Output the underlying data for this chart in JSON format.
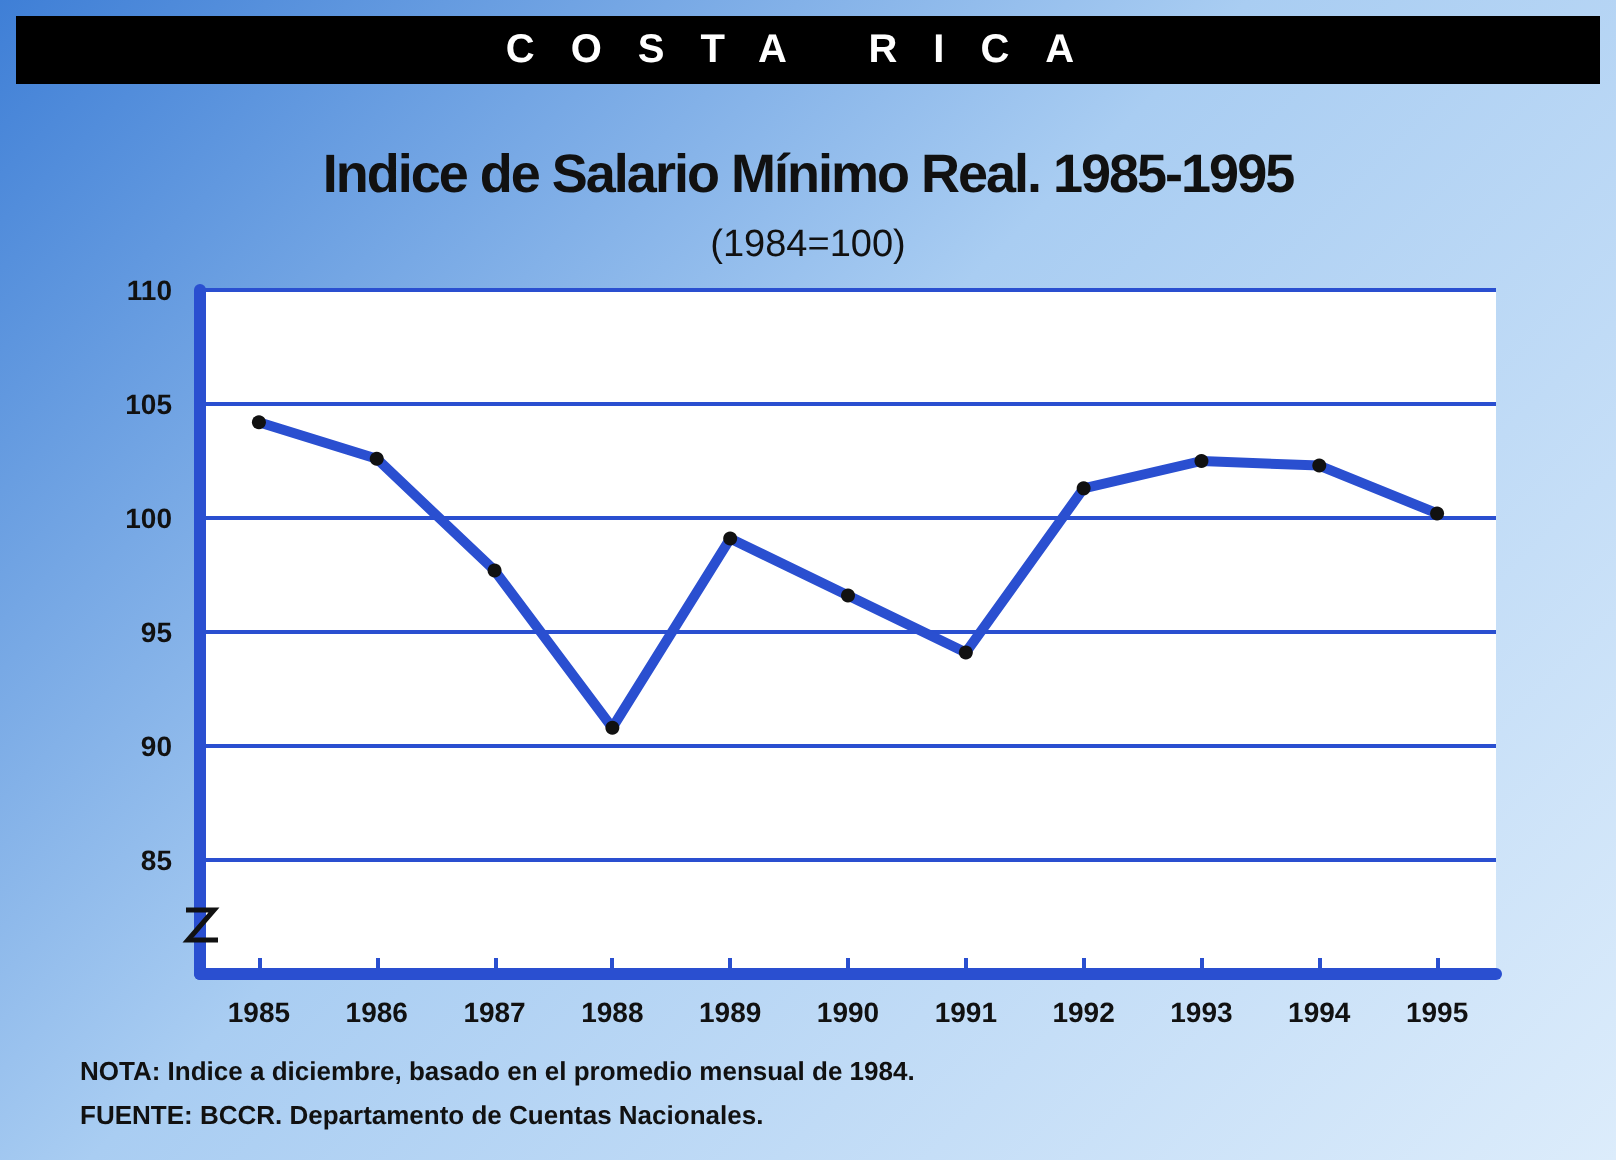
{
  "chart_data": {
    "type": "line",
    "title": "Indice de Salario Mínimo Real. 1985-1995",
    "subtitle": "(1984=100)",
    "annotations": [
      "COSTA RICA",
      "NOTA: Indice a diciembre, basado en el promedio mensual de 1984.",
      "FUENTE: BCCR. Departamento  de Cuentas Nacionales."
    ],
    "categories": [
      "1985",
      "1986",
      "1987",
      "1988",
      "1989",
      "1990",
      "1991",
      "1992",
      "1993",
      "1994",
      "1995"
    ],
    "series": [
      {
        "color": "#2a4fd0",
        "values": [
          104.2,
          102.6,
          97.7,
          90.8,
          99.1,
          96.6,
          94.1,
          101.3,
          102.5,
          102.3,
          100.2
        ]
      }
    ],
    "ylim": [
      80,
      110
    ],
    "yticks": [
      85,
      90,
      95,
      100,
      105,
      110
    ],
    "grid": "y",
    "marker": "circle",
    "line_style": "solid"
  }
}
